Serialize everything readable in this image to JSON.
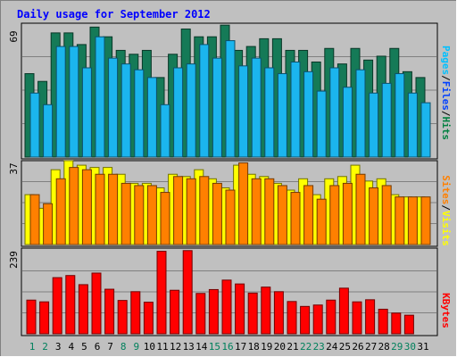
{
  "chart_data": [
    {
      "type": "bar",
      "title": "Daily usage for September 2012",
      "panel": "hits-files-pages",
      "y_max_label": "69",
      "legend": [
        {
          "label": "Pages",
          "color": "#00c0ff"
        },
        {
          "label": "Files",
          "color": "#0040ff"
        },
        {
          "label": "Hits",
          "color": "#008040"
        }
      ],
      "legend_separators": [
        "/",
        "/"
      ],
      "categories": [
        "1",
        "2",
        "3",
        "4",
        "5",
        "6",
        "7",
        "8",
        "9",
        "10",
        "11",
        "12",
        "13",
        "14",
        "15",
        "16",
        "17",
        "18",
        "19",
        "20",
        "21",
        "22",
        "23",
        "24",
        "25",
        "26",
        "27",
        "28",
        "29",
        "30",
        "31"
      ],
      "series": [
        {
          "name": "Hits",
          "color": "#157a57",
          "values": [
            43,
            39,
            64,
            64,
            58,
            67,
            62,
            55,
            53,
            55,
            41,
            53,
            66,
            62,
            62,
            68,
            55,
            57,
            61,
            61,
            55,
            55,
            49,
            56,
            48,
            56,
            50,
            52,
            56,
            44,
            41
          ]
        },
        {
          "name": "Pages",
          "color": "#1bb5ee",
          "values": [
            33,
            27,
            57,
            57,
            46,
            62,
            51,
            48,
            45,
            41,
            27,
            46,
            48,
            58,
            51,
            60,
            47,
            51,
            46,
            43,
            49,
            44,
            34,
            46,
            36,
            45,
            33,
            38,
            43,
            33,
            28
          ]
        }
      ],
      "ylim": [
        0,
        69
      ]
    },
    {
      "type": "bar",
      "panel": "visits-sites",
      "y_max_label": "37",
      "legend": [
        {
          "label": "Sites",
          "color": "#ff8000"
        },
        {
          "label": "Visits",
          "color": "#ffff00"
        }
      ],
      "legend_separators": [
        "/"
      ],
      "categories": [
        "1",
        "2",
        "3",
        "4",
        "5",
        "6",
        "7",
        "8",
        "9",
        "10",
        "11",
        "12",
        "13",
        "14",
        "15",
        "16",
        "17",
        "18",
        "19",
        "20",
        "21",
        "22",
        "23",
        "24",
        "25",
        "26",
        "27",
        "28",
        "29",
        "30",
        "31"
      ],
      "series": [
        {
          "name": "Visits",
          "color": "#ffff00",
          "values": [
            22,
            16,
            33,
            37,
            35,
            34,
            34,
            31,
            27,
            27,
            25,
            31,
            30,
            33,
            29,
            25,
            35,
            31,
            30,
            27,
            24,
            29,
            22,
            29,
            30,
            35,
            28,
            29,
            22,
            21,
            21
          ]
        },
        {
          "name": "Sites",
          "color": "#ff8000",
          "values": [
            22,
            18,
            29,
            34,
            33,
            31,
            31,
            27,
            26,
            26,
            23,
            30,
            29,
            30,
            27,
            24,
            36,
            29,
            29,
            26,
            23,
            26,
            20,
            26,
            27,
            31,
            25,
            26,
            21,
            21,
            21
          ]
        }
      ],
      "ylim": [
        0,
        37
      ]
    },
    {
      "type": "bar",
      "panel": "kbytes",
      "y_max_label": "239",
      "legend": [
        {
          "label": "KBytes",
          "color": "#ff0000"
        }
      ],
      "legend_separators": [],
      "categories": [
        "1",
        "2",
        "3",
        "4",
        "5",
        "6",
        "7",
        "8",
        "9",
        "10",
        "11",
        "12",
        "13",
        "14",
        "15",
        "16",
        "17",
        "18",
        "19",
        "20",
        "21",
        "22",
        "23",
        "24",
        "25",
        "26",
        "27",
        "28",
        "29",
        "30",
        "31"
      ],
      "series": [
        {
          "name": "KBytes",
          "color": "#ff0000",
          "values": [
            96,
            91,
            160,
            166,
            140,
            173,
            127,
            95,
            120,
            90,
            235,
            124,
            237,
            115,
            126,
            153,
            142,
            116,
            133,
            120,
            92,
            78,
            82,
            96,
            130,
            91,
            97,
            70,
            59,
            53,
            0
          ]
        }
      ],
      "ylim": [
        0,
        239
      ]
    }
  ],
  "colors": {
    "background": "#c0c0c0",
    "title": "#0000ff",
    "weekend_label": "#00805c",
    "weekday_label": "#000000"
  },
  "x_axis": {
    "weekend_days": [
      "1",
      "2",
      "8",
      "9",
      "15",
      "16",
      "22",
      "23",
      "29",
      "30"
    ]
  }
}
